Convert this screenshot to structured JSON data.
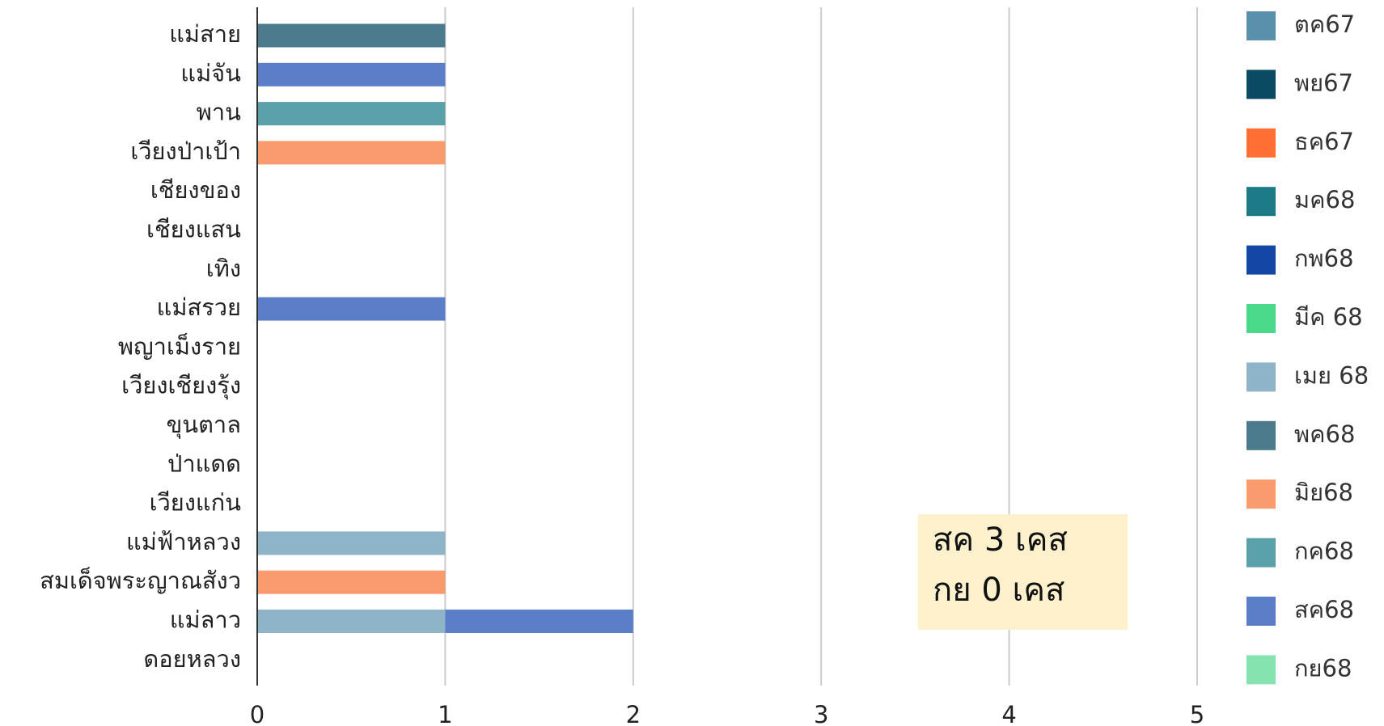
{
  "chart_data": {
    "type": "bar",
    "orientation": "horizontal",
    "stacked": true,
    "categories": [
      "แม่สาย",
      "แม่จัน",
      "พาน",
      "เวียงป่าเป้า",
      "เชียงของ",
      "เชียงแสน",
      "เทิง",
      "แม่สรวย",
      "พญาเม็งราย",
      "เวียงเชียงรุ้ง",
      "ขุนตาล",
      "ป่าแดด",
      "เวียงแก่น",
      "แม่ฟ้าหลวง",
      "สมเด็จพระญาณสังว",
      "แม่ลาว",
      "ดอยหลวง"
    ],
    "series": [
      {
        "name": "ตค67",
        "color": "#5b8fae",
        "values": [
          0,
          0,
          0,
          0,
          0,
          0,
          0,
          0,
          0,
          0,
          0,
          0,
          0,
          0,
          0,
          0,
          0
        ]
      },
      {
        "name": "พย67",
        "color": "#0b4a63",
        "values": [
          0,
          0,
          0,
          0,
          0,
          0,
          0,
          0,
          0,
          0,
          0,
          0,
          0,
          0,
          0,
          0,
          0
        ]
      },
      {
        "name": "ธค67",
        "color": "#ff6e33",
        "values": [
          0,
          0,
          0,
          0,
          0,
          0,
          0,
          0,
          0,
          0,
          0,
          0,
          0,
          0,
          0,
          0,
          0
        ]
      },
      {
        "name": "มค68",
        "color": "#1b7a85",
        "values": [
          0,
          0,
          0,
          0,
          0,
          0,
          0,
          0,
          0,
          0,
          0,
          0,
          0,
          0,
          0,
          0,
          0
        ]
      },
      {
        "name": "กพ68",
        "color": "#1446a8",
        "values": [
          0,
          0,
          0,
          0,
          0,
          0,
          0,
          0,
          0,
          0,
          0,
          0,
          0,
          0,
          0,
          0,
          0
        ]
      },
      {
        "name": "มีค 68",
        "color": "#4ad98a",
        "values": [
          0,
          0,
          0,
          0,
          0,
          0,
          0,
          0,
          0,
          0,
          0,
          0,
          0,
          0,
          0,
          0,
          0
        ]
      },
      {
        "name": "เมย 68",
        "color": "#8fb4c8",
        "values": [
          0,
          0,
          0,
          0,
          0,
          0,
          0,
          0,
          0,
          0,
          0,
          0,
          0,
          1,
          0,
          1,
          0
        ]
      },
      {
        "name": "พค68",
        "color": "#4a7a8c",
        "values": [
          1,
          0,
          0,
          0,
          0,
          0,
          0,
          0,
          0,
          0,
          0,
          0,
          0,
          0,
          0,
          0,
          0
        ]
      },
      {
        "name": "มิย68",
        "color": "#fa9b6e",
        "values": [
          0,
          0,
          0,
          1,
          0,
          0,
          0,
          0,
          0,
          0,
          0,
          0,
          0,
          0,
          1,
          0,
          0
        ]
      },
      {
        "name": "กค68",
        "color": "#5aa0a8",
        "values": [
          0,
          0,
          1,
          0,
          0,
          0,
          0,
          0,
          0,
          0,
          0,
          0,
          0,
          0,
          0,
          0,
          0
        ]
      },
      {
        "name": "สค68",
        "color": "#5a7fc8",
        "values": [
          0,
          1,
          0,
          0,
          0,
          0,
          0,
          1,
          0,
          0,
          0,
          0,
          0,
          0,
          0,
          1,
          0
        ]
      },
      {
        "name": "กย68",
        "color": "#86e3b0",
        "values": [
          0,
          0,
          0,
          0,
          0,
          0,
          0,
          0,
          0,
          0,
          0,
          0,
          0,
          0,
          0,
          0,
          0
        ]
      }
    ],
    "xlim": [
      0,
      5
    ],
    "xticks": [
      0,
      1,
      2,
      3,
      4,
      5
    ],
    "grid": true,
    "legend": "right",
    "annotation": {
      "lines": [
        "สค 3 เคส",
        "กย 0 เคส"
      ],
      "background": "#fdf0cc"
    }
  }
}
